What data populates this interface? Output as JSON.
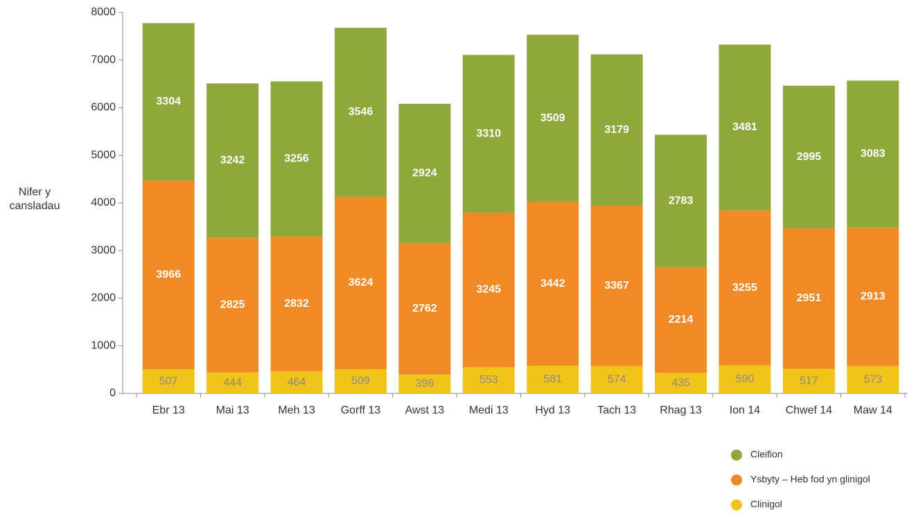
{
  "chart_data": {
    "type": "stacked_bar",
    "y_label": "Nifer y cansladau",
    "categories": [
      "Ebr 13",
      "Mai 13",
      "Meh 13",
      "Gorff 13",
      "Awst 13",
      "Medi 13",
      "Hyd 13",
      "Tach 13",
      "Rhag 13",
      "Ion 14",
      "Chwef 14",
      "Maw 14"
    ],
    "series": [
      {
        "name": "Cleifion",
        "color": "#8fa83c",
        "label_color": "#ffffff",
        "values": [
          3304,
          3242,
          3256,
          3546,
          2924,
          3310,
          3509,
          3179,
          2783,
          3481,
          2995,
          3083
        ]
      },
      {
        "name": "Ysbyty – Heb fod yn glinigol",
        "color": "#f08a24",
        "label_color": "#ffffff",
        "values": [
          3966,
          2825,
          2832,
          3624,
          2762,
          3245,
          3442,
          3367,
          2214,
          3255,
          2951,
          2913
        ]
      },
      {
        "name": "Clinigol",
        "color": "#f2c318",
        "label_color": "#8a8a8a",
        "values": [
          507,
          444,
          464,
          509,
          396,
          553,
          581,
          574,
          435,
          590,
          517,
          573
        ]
      }
    ],
    "ylim": [
      0,
      8000
    ],
    "yticks": [
      0,
      1000,
      2000,
      3000,
      4000,
      5000,
      6000,
      7000,
      8000
    ],
    "grid": false,
    "legend": "bottom-right"
  }
}
